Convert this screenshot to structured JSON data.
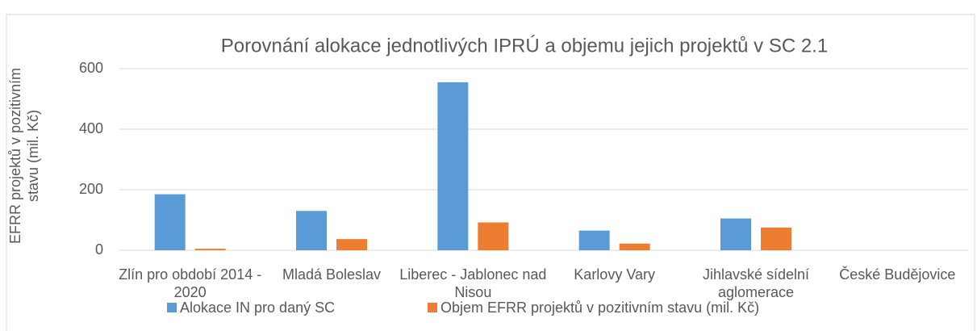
{
  "chart_data": {
    "type": "bar",
    "title": "Porovnání alokace jednotlivých IPRÚ a objemu jejich projektů v SC 2.1",
    "y_label": "EFRR projektů v pozitivním stavu (mil. Kč)",
    "categories": [
      "Zlín pro období 2014 - 2020",
      "Mladá Boleslav",
      "Liberec - Jablonec nad Nisou",
      "Karlovy Vary",
      "Jihlavské sídelní aglomerace",
      "České Budějovice"
    ],
    "series": [
      {
        "name": "Alokace IN pro daný SC",
        "color": "#5b9bd5",
        "values": [
          185,
          130,
          555,
          65,
          105,
          0
        ]
      },
      {
        "name": "Objem EFRR projektů v pozitivním stavu (mil. Kč)",
        "color": "#ed7d31",
        "values": [
          5,
          37,
          92,
          22,
          75,
          0
        ]
      }
    ],
    "ylim": [
      0,
      600
    ],
    "yticks": [
      0,
      200,
      400,
      600
    ],
    "grid": true,
    "legend": "bottom"
  }
}
